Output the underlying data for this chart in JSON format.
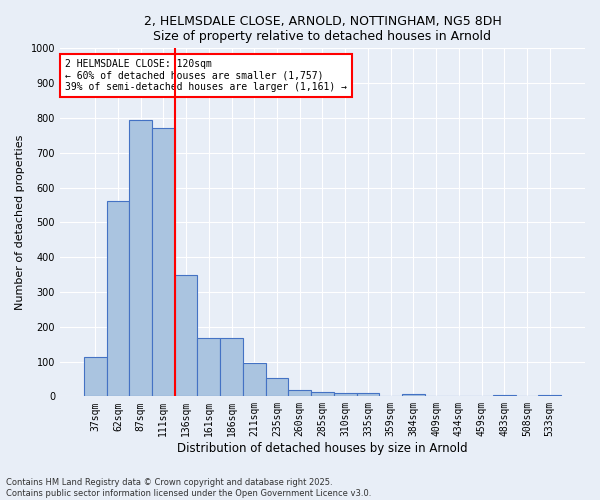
{
  "title_line1": "2, HELMSDALE CLOSE, ARNOLD, NOTTINGHAM, NG5 8DH",
  "title_line2": "Size of property relative to detached houses in Arnold",
  "xlabel": "Distribution of detached houses by size in Arnold",
  "ylabel": "Number of detached properties",
  "categories": [
    "37sqm",
    "62sqm",
    "87sqm",
    "111sqm",
    "136sqm",
    "161sqm",
    "186sqm",
    "211sqm",
    "235sqm",
    "260sqm",
    "285sqm",
    "310sqm",
    "335sqm",
    "359sqm",
    "384sqm",
    "409sqm",
    "434sqm",
    "459sqm",
    "483sqm",
    "508sqm",
    "533sqm"
  ],
  "values": [
    112,
    562,
    793,
    770,
    348,
    168,
    168,
    97,
    53,
    18,
    13,
    11,
    10,
    0,
    8,
    0,
    0,
    0,
    5,
    0,
    5
  ],
  "bar_color": "#aac4e0",
  "bar_edge_color": "#4472c4",
  "bg_color": "#e8eef7",
  "grid_color": "#ffffff",
  "vline_color": "red",
  "vline_x": 3.5,
  "annotation_text": "2 HELMSDALE CLOSE: 120sqm\n← 60% of detached houses are smaller (1,757)\n39% of semi-detached houses are larger (1,161) →",
  "annotation_box_color": "white",
  "annotation_box_edge": "red",
  "ylim": [
    0,
    1000
  ],
  "yticks": [
    0,
    100,
    200,
    300,
    400,
    500,
    600,
    700,
    800,
    900,
    1000
  ],
  "footnote": "Contains HM Land Registry data © Crown copyright and database right 2025.\nContains public sector information licensed under the Open Government Licence v3.0."
}
